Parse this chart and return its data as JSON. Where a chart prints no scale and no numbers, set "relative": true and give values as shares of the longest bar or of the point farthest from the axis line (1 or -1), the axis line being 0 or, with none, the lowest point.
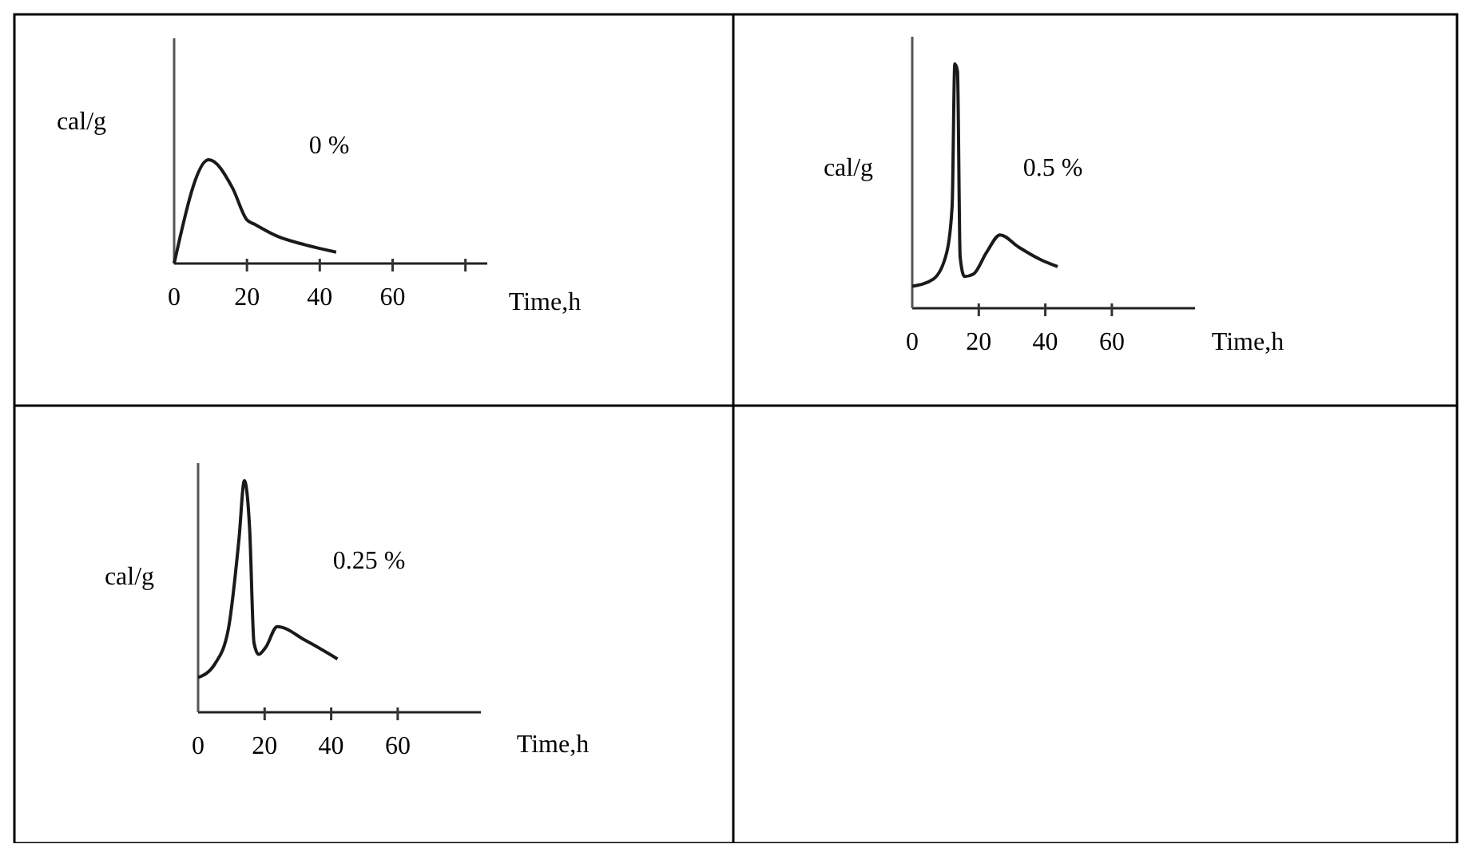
{
  "chart_data": [
    {
      "type": "line",
      "relative": true,
      "ylabel": "cal/g",
      "xlabel": "Time,h",
      "annotations": [
        "0 %"
      ],
      "xlim": [
        0,
        86
      ],
      "xticks": [
        0,
        20,
        40,
        60,
        {
          "value": 80,
          "label": null
        }
      ],
      "x": [
        0,
        9.5,
        16,
        20,
        22,
        28.5,
        36,
        44.5
      ],
      "series": [
        {
          "color": "#1a1a1a",
          "values": [
            0,
            1,
            0.73,
            0.42,
            0.38,
            0.26,
            0.18,
            0.11
          ]
        }
      ]
    },
    {
      "type": "line",
      "relative": true,
      "ylabel": "cal/g",
      "xlabel": "Time,h",
      "annotations": [
        "0.5 %"
      ],
      "xlim": [
        0,
        85
      ],
      "xticks": [
        0,
        20,
        40,
        60
      ],
      "x": [
        0,
        6.4,
        10.4,
        12,
        12.8,
        13.6,
        14.4,
        15.7,
        18.4,
        22.4,
        26.4,
        32,
        38.4,
        43.7
      ],
      "series": [
        {
          "color": "#1a1a1a",
          "values": [
            0.09,
            0.12,
            0.23,
            0.42,
            1,
            0.97,
            0.21,
            0.13,
            0.14,
            0.23,
            0.3,
            0.25,
            0.2,
            0.17
          ]
        }
      ]
    },
    {
      "type": "line",
      "relative": true,
      "ylabel": "cal/g",
      "xlabel": "Time,h",
      "annotations": [
        "0.25 %"
      ],
      "xlim": [
        0,
        85
      ],
      "xticks": [
        0,
        20,
        40,
        60
      ],
      "x": [
        0,
        5.1,
        9.1,
        12.3,
        13.9,
        15.5,
        16.8,
        18.2,
        20.3,
        23.8,
        32.3,
        41.9
      ],
      "series": [
        {
          "color": "#1a1a1a",
          "values": [
            0.15,
            0.21,
            0.36,
            0.75,
            1,
            0.79,
            0.3,
            0.25,
            0.28,
            0.37,
            0.31,
            0.23
          ]
        }
      ]
    }
  ]
}
